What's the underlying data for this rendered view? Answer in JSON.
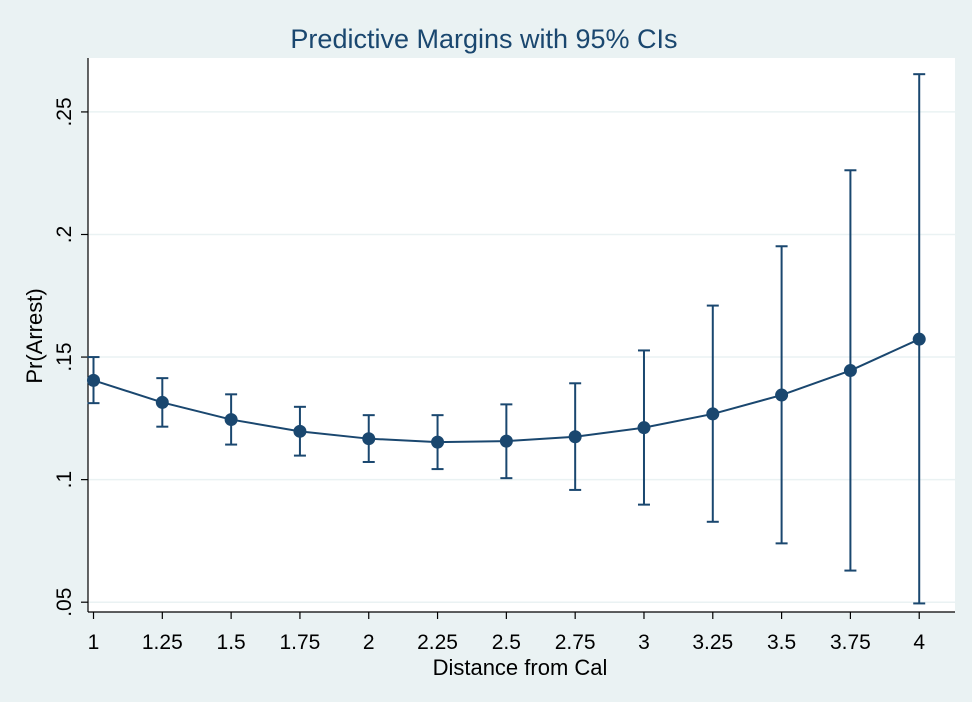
{
  "chart_data": {
    "type": "line",
    "title": "Predictive Margins with 95% CIs",
    "xlabel": "Distance from Cal",
    "ylabel": "Pr(Arrest)",
    "x_ticks": [
      1,
      1.25,
      1.5,
      1.75,
      2,
      2.25,
      2.5,
      2.75,
      3,
      3.25,
      3.5,
      3.75,
      4
    ],
    "x_tick_labels": [
      "1",
      "1.25",
      "1.5",
      "1.75",
      "2",
      "2.25",
      "2.5",
      "2.75",
      "3",
      "3.25",
      "3.5",
      "3.75",
      "4"
    ],
    "y_ticks": [
      0.05,
      0.1,
      0.15,
      0.2,
      0.25
    ],
    "y_tick_labels": [
      ".05",
      ".1",
      ".15",
      ".2",
      ".25"
    ],
    "xlim": [
      0.98,
      4.13
    ],
    "ylim": [
      0.046,
      0.272
    ],
    "grid": true,
    "colors": {
      "outer_background": "#eaf2f3",
      "plot_background": "#ffffff",
      "gridline": "#eaf2f3",
      "series": "#1a476f",
      "title": "#1a476f"
    },
    "series": [
      {
        "x": [
          1,
          1.25,
          1.5,
          1.75,
          2,
          2.25,
          2.5,
          2.75,
          3,
          3.25,
          3.5,
          3.75,
          4
        ],
        "y": [
          0.1405,
          0.1315,
          0.1245,
          0.1197,
          0.1167,
          0.1153,
          0.1157,
          0.1175,
          0.1212,
          0.1268,
          0.1345,
          0.1445,
          0.1573
        ],
        "ci_lower": [
          0.1312,
          0.1216,
          0.1143,
          0.1098,
          0.1072,
          0.1043,
          0.1006,
          0.0958,
          0.0898,
          0.0828,
          0.074,
          0.0629,
          0.0495
        ],
        "ci_upper": [
          0.15,
          0.1414,
          0.1348,
          0.1297,
          0.1263,
          0.1263,
          0.1307,
          0.1393,
          0.1527,
          0.171,
          0.1952,
          0.2262,
          0.2654
        ]
      }
    ]
  }
}
